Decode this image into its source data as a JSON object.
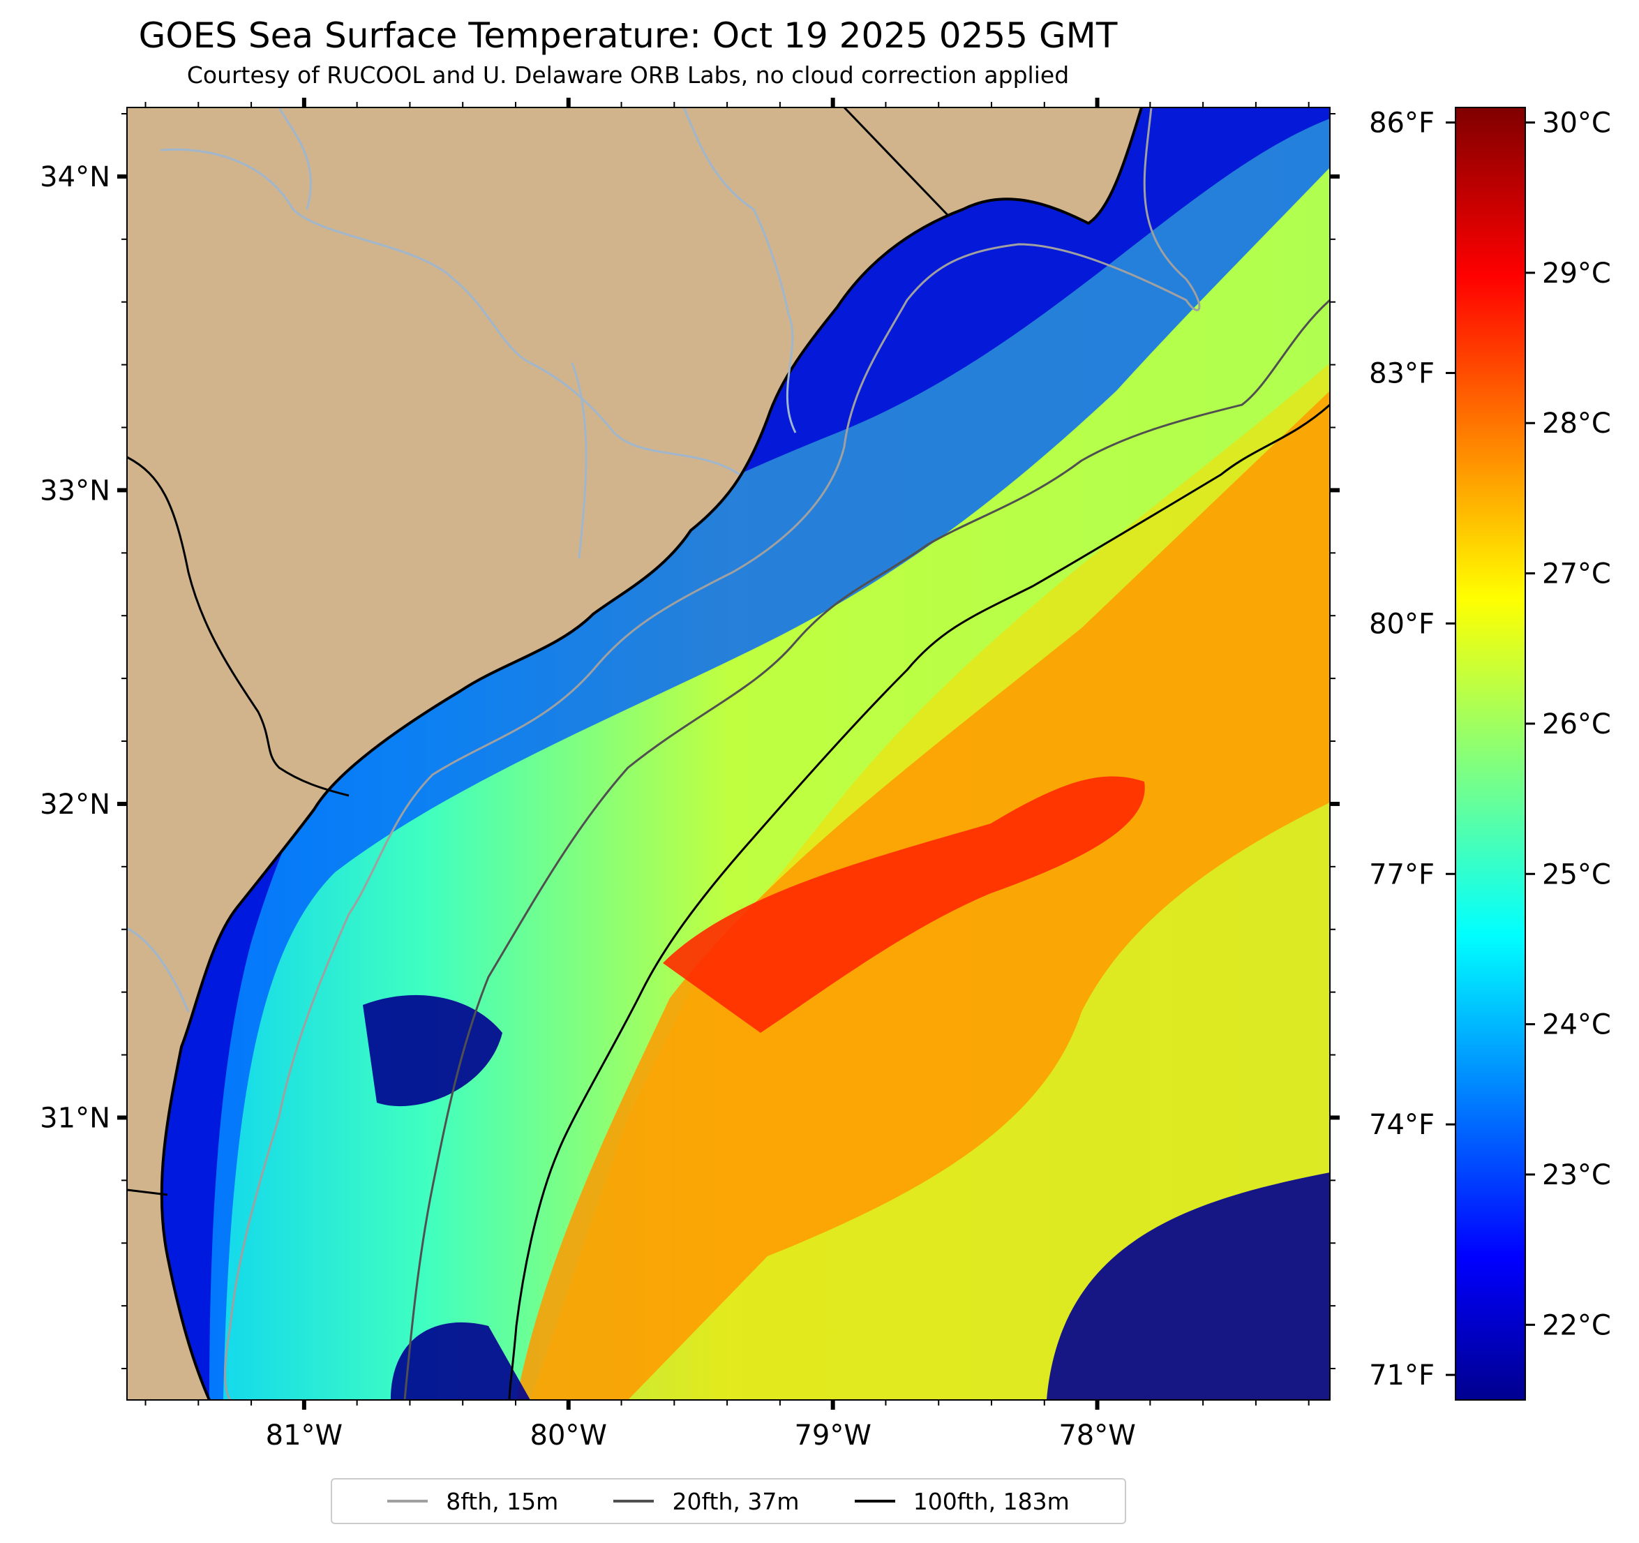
{
  "header": {
    "title": "GOES Sea Surface Temperature: Oct 19 2025 0255 GMT",
    "subtitle": "Courtesy of RUCOOL and U. Delaware ORB Labs, no cloud correction applied"
  },
  "map": {
    "lon_range": [
      -81.67,
      -77.12
    ],
    "lat_range": [
      30.1,
      34.22
    ],
    "lon_ticks": [
      {
        "value": -81,
        "label": "81°W"
      },
      {
        "value": -80,
        "label": "80°W"
      },
      {
        "value": -79,
        "label": "79°W"
      },
      {
        "value": -78,
        "label": "78°W"
      }
    ],
    "lat_ticks": [
      {
        "value": 31,
        "label": "31°N"
      },
      {
        "value": 32,
        "label": "32°N"
      },
      {
        "value": 33,
        "label": "33°N"
      },
      {
        "value": 34,
        "label": "34°N"
      }
    ],
    "fahrenheit_ticks": [
      {
        "value": 71,
        "label": "71°F"
      },
      {
        "value": 74,
        "label": "74°F"
      },
      {
        "value": 77,
        "label": "77°F"
      },
      {
        "value": 80,
        "label": "80°F"
      },
      {
        "value": 83,
        "label": "83°F"
      },
      {
        "value": 86,
        "label": "86°F"
      }
    ],
    "colors": {
      "land": "#d2b48c",
      "rivers": "#9fb6cd",
      "coastline": "#000000",
      "isobath_8fth": "#a0a0a0",
      "isobath_20fth": "#505050",
      "isobath_100fth": "#000000"
    }
  },
  "colorbar": {
    "min_c": 21.5,
    "max_c": 30.1,
    "colormap": "jet",
    "ticks": [
      {
        "value": 22,
        "label": "22°C"
      },
      {
        "value": 23,
        "label": "23°C"
      },
      {
        "value": 24,
        "label": "24°C"
      },
      {
        "value": 25,
        "label": "25°C"
      },
      {
        "value": 26,
        "label": "26°C"
      },
      {
        "value": 27,
        "label": "27°C"
      },
      {
        "value": 28,
        "label": "28°C"
      },
      {
        "value": 29,
        "label": "29°C"
      },
      {
        "value": 30,
        "label": "30°C"
      }
    ]
  },
  "legend": {
    "items": [
      {
        "label": "8fth, 15m",
        "color": "#a0a0a0"
      },
      {
        "label": "20fth, 37m",
        "color": "#505050"
      },
      {
        "label": "100fth, 183m",
        "color": "#000000"
      }
    ]
  }
}
